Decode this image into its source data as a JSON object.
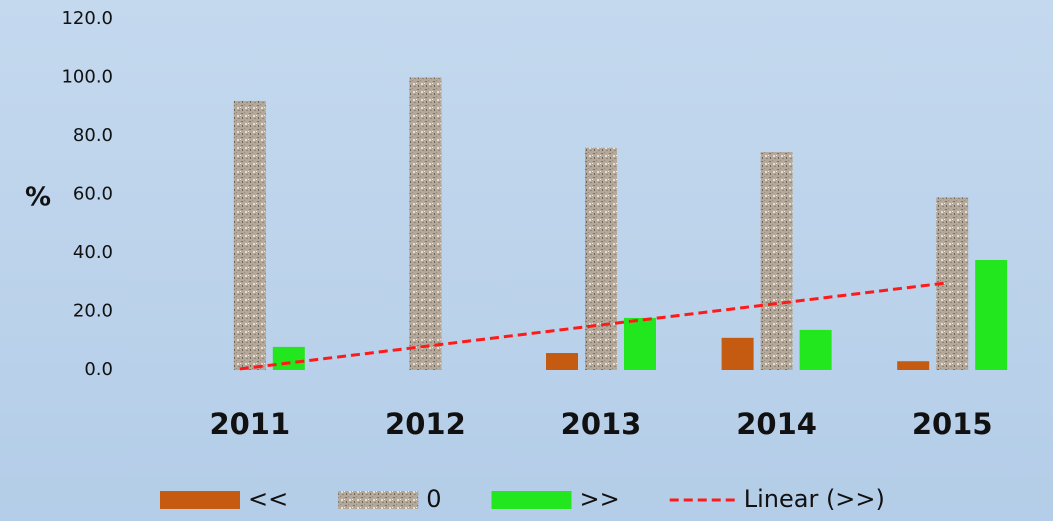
{
  "chart_data": {
    "type": "bar",
    "y_label": "%",
    "categories": [
      "2011",
      "2012",
      "2013",
      "2014",
      "2015"
    ],
    "series": [
      {
        "name": "<<",
        "color": "#c55a11",
        "values": [
          0,
          0,
          5.8,
          11,
          3
        ]
      },
      {
        "name": "0",
        "color": "#b3a899",
        "values": [
          92,
          100,
          76,
          74.5,
          59
        ]
      },
      {
        "name": ">>",
        "color": "#22e61e",
        "values": [
          7.9,
          0,
          17.8,
          13.7,
          37.6
        ],
        "trendline": {
          "name": "Linear (>>)",
          "color": "#ff1a1a"
        }
      }
    ],
    "ylim": [
      0,
      120
    ],
    "yticks": [
      {
        "value": 0,
        "label": "0.0"
      },
      {
        "value": 20,
        "label": "20.0"
      },
      {
        "value": 40,
        "label": "40.0"
      },
      {
        "value": 60,
        "label": "60.0"
      },
      {
        "value": 80,
        "label": "80.0"
      },
      {
        "value": 100,
        "label": "100.0"
      },
      {
        "value": 120,
        "label": "120.0"
      }
    ],
    "legend": "bottom"
  }
}
